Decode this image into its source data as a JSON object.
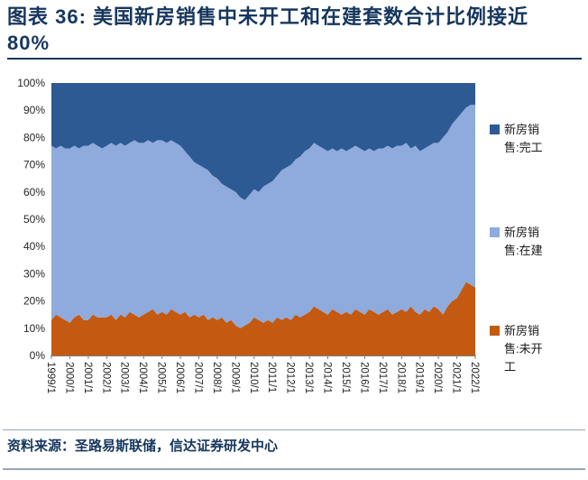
{
  "title": {
    "lines": [
      "图表 36: 美国新房销售中未开工和在建套数合计比例接近",
      "80%"
    ],
    "text": "图表 36: 美国新房销售中未开工和在建套数合计比例接近80%"
  },
  "source": {
    "text": "资料来源：圣路易斯联储，信达证券研发中心"
  },
  "legend": {
    "items": [
      {
        "key": "completed",
        "label": "新房销售:完工",
        "color": "#2D5A92"
      },
      {
        "key": "under-construction",
        "label": "新房销售:在建",
        "color": "#8FAADC"
      },
      {
        "key": "not-started",
        "label": "新房销售:未开工",
        "color": "#C45911"
      }
    ]
  },
  "chart_data": {
    "type": "area",
    "variant": "100%-stacked",
    "title": "图表 36: 美国新房销售中未开工和在建套数合计比例接近80%",
    "xlabel": "",
    "ylabel": "",
    "units": "%",
    "ylim": [
      0,
      100
    ],
    "ytick_values": [
      0,
      10,
      20,
      30,
      40,
      50,
      60,
      70,
      80,
      90,
      100
    ],
    "ytick_labels": [
      "0%",
      "10%",
      "20%",
      "30%",
      "40%",
      "50%",
      "60%",
      "70%",
      "80%",
      "90%",
      "100%"
    ],
    "x_range": [
      "1999/1",
      "2022/1"
    ],
    "x_points": 93,
    "xtick_indices": [
      0,
      4,
      8,
      12,
      16,
      20,
      24,
      28,
      32,
      36,
      40,
      44,
      48,
      52,
      56,
      60,
      64,
      68,
      72,
      76,
      80,
      84,
      88,
      92
    ],
    "xtick_labels": [
      "1999/1",
      "2000/1",
      "2001/1",
      "2002/1",
      "2003/1",
      "2004/1",
      "2005/1",
      "2006/1",
      "2007/1",
      "2008/1",
      "2009/1",
      "2010/1",
      "2011/1",
      "2012/1",
      "2013/1",
      "2014/1",
      "2015/1",
      "2016/1",
      "2017/1",
      "2018/1",
      "2019/1",
      "2020/1",
      "2021/1",
      "2022/1"
    ],
    "legend_position": "right",
    "grid": false,
    "series": [
      {
        "key": "not-started",
        "name": "新房销售:未开工",
        "color": "#C45911",
        "values": [
          13,
          15,
          14,
          13,
          12,
          14,
          15,
          13,
          13,
          15,
          14,
          14,
          14,
          15,
          13,
          15,
          14,
          16,
          15,
          14,
          15,
          16,
          17,
          15,
          16,
          15,
          17,
          16,
          15,
          16,
          14,
          15,
          14,
          15,
          13,
          14,
          13,
          14,
          12,
          13,
          11,
          10,
          11,
          12,
          14,
          13,
          12,
          13,
          12,
          14,
          13,
          14,
          13,
          15,
          14,
          15,
          16,
          18,
          17,
          16,
          15,
          17,
          16,
          15,
          16,
          15,
          17,
          16,
          15,
          17,
          16,
          15,
          16,
          17,
          15,
          16,
          17,
          16,
          18,
          16,
          15,
          17,
          16,
          18,
          17,
          15,
          18,
          20,
          21,
          24,
          27,
          26,
          25
        ]
      },
      {
        "key": "under-construction",
        "name": "新房销售:在建",
        "color": "#8FAADC",
        "values": [
          64,
          61,
          63,
          63,
          64,
          63,
          61,
          64,
          64,
          63,
          63,
          62,
          63,
          63,
          64,
          63,
          63,
          62,
          64,
          64,
          63,
          63,
          61,
          64,
          63,
          63,
          62,
          62,
          62,
          59,
          59,
          56,
          56,
          54,
          55,
          52,
          52,
          49,
          50,
          48,
          49,
          48,
          46,
          47,
          47,
          47,
          50,
          50,
          52,
          52,
          55,
          55,
          57,
          57,
          59,
          60,
          60,
          60,
          60,
          60,
          60,
          59,
          59,
          61,
          59,
          61,
          60,
          60,
          60,
          59,
          59,
          61,
          60,
          60,
          61,
          61,
          60,
          62,
          58,
          61,
          60,
          59,
          61,
          60,
          61,
          65,
          64,
          65,
          66,
          65,
          64,
          66,
          67
        ]
      },
      {
        "key": "completed",
        "name": "新房销售:完工",
        "color": "#2D5A92",
        "values": [
          23,
          24,
          23,
          24,
          24,
          23,
          24,
          23,
          23,
          22,
          23,
          24,
          23,
          22,
          23,
          22,
          23,
          22,
          21,
          22,
          22,
          21,
          22,
          21,
          21,
          22,
          21,
          22,
          23,
          25,
          27,
          29,
          30,
          31,
          32,
          34,
          35,
          37,
          38,
          39,
          40,
          42,
          43,
          41,
          39,
          40,
          38,
          37,
          36,
          34,
          32,
          31,
          30,
          28,
          27,
          25,
          24,
          22,
          23,
          24,
          25,
          24,
          25,
          24,
          25,
          24,
          23,
          24,
          25,
          24,
          25,
          24,
          24,
          23,
          24,
          23,
          23,
          22,
          24,
          23,
          25,
          24,
          23,
          22,
          22,
          20,
          18,
          15,
          13,
          11,
          9,
          8,
          8
        ]
      }
    ]
  }
}
